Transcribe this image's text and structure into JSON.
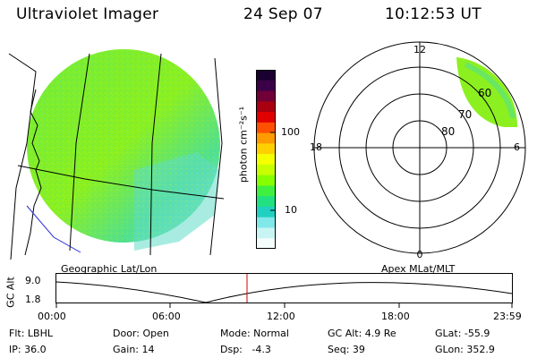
{
  "header": {
    "instrument": "Ultraviolet Imager",
    "date": "24 Sep 07",
    "time": "10:12:53 UT"
  },
  "colorbar": {
    "unit_label": "photon cm⁻²s⁻¹",
    "ticks": [
      "100",
      "10"
    ],
    "colors": [
      "#1a0030",
      "#3a0048",
      "#700038",
      "#a80010",
      "#e00000",
      "#ff5000",
      "#ff9a00",
      "#ffd000",
      "#f4ff00",
      "#c8ff00",
      "#88ff00",
      "#40f040",
      "#20e080",
      "#20d0c0",
      "#80e8e8",
      "#c8f4f4",
      "#f4fcfc"
    ]
  },
  "geo_panel": {
    "label": "Geographic Lat/Lon"
  },
  "polar_panel": {
    "label": "Apex MLat/MLT",
    "mlt_labels": {
      "top": "12",
      "left": "18",
      "right": "6",
      "bottom": "0"
    },
    "lat_labels": [
      "60",
      "70",
      "80"
    ]
  },
  "altitude_plot": {
    "ylabel": "GC Alt",
    "yticks": [
      "9.0",
      "1.8"
    ],
    "xticks": [
      "00:00",
      "06:00",
      "12:00",
      "18:00",
      "23:59"
    ],
    "current_time_color": "#d00000"
  },
  "info": {
    "flt": "Flt: LBHL",
    "ip": "IP: 36.0",
    "door": "Door: Open",
    "gain": "Gain: 14",
    "mode": "Mode: Normal",
    "dsp": "Dsp:   -4.3",
    "gcalt": "GC Alt: 4.9 Re",
    "seq": "Seq: 39",
    "glat": "GLat: -55.9",
    "glon": "GLon: 352.9"
  }
}
